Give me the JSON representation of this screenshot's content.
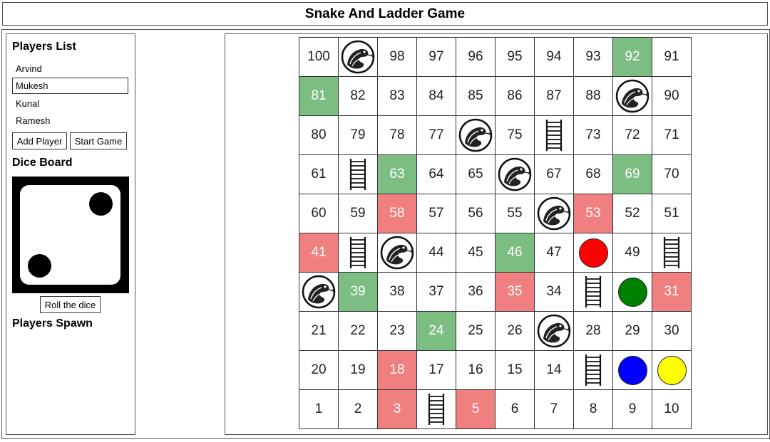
{
  "app": {
    "title": "Snake And Ladder Game"
  },
  "sidebar": {
    "players_title": "Players List",
    "players": [
      "Arvind",
      "Mukesh",
      "Kunal",
      "Ramesh"
    ],
    "selected_player": "Mukesh",
    "add_player_label": "Add Player",
    "start_game_label": "Start Game",
    "dice_title": "Dice Board",
    "dice_value": 2,
    "roll_label": "Roll the dice",
    "spawn_title": "Players Spawn"
  },
  "colors": {
    "ladder_base": "#7cbd82",
    "snake_tail": "#f08080",
    "tokens": [
      "#ff0000",
      "#008000",
      "#0000ff",
      "#ffff00"
    ]
  },
  "board": {
    "rows": [
      [
        "100",
        "snake-icon",
        "98",
        "97",
        "96",
        "95",
        "94",
        "93",
        "92",
        "91"
      ],
      [
        "81",
        "82",
        "83",
        "84",
        "85",
        "86",
        "87",
        "88",
        "snake-icon",
        "90"
      ],
      [
        "80",
        "79",
        "78",
        "77",
        "snake-icon",
        "75",
        "ladder-icon",
        "73",
        "72",
        "71"
      ],
      [
        "61",
        "ladder-icon",
        "63",
        "64",
        "65",
        "snake-icon",
        "67",
        "68",
        "69",
        "70"
      ],
      [
        "60",
        "59",
        "58",
        "57",
        "56",
        "55",
        "snake-icon",
        "53",
        "52",
        "51"
      ],
      [
        "41",
        "ladder-icon",
        "snake-icon",
        "44",
        "45",
        "46",
        "47",
        "token:#ff0000",
        "49",
        "ladder-icon"
      ],
      [
        "snake-icon",
        "39",
        "38",
        "37",
        "36",
        "35",
        "34",
        "ladder-icon",
        "token:#008000",
        "31"
      ],
      [
        "21",
        "22",
        "23",
        "24",
        "25",
        "26",
        "snake-icon",
        "28",
        "29",
        "30"
      ],
      [
        "20",
        "19",
        "18",
        "17",
        "16",
        "15",
        "14",
        "ladder-icon",
        "token:#0000ff",
        "token:#ffff00"
      ],
      [
        "1",
        "2",
        "3",
        "ladder-icon",
        "5",
        "6",
        "7",
        "8",
        "9",
        "10"
      ]
    ],
    "green_cells": [
      "92",
      "81",
      "63",
      "69",
      "46",
      "39",
      "24"
    ],
    "red_cells": [
      "58",
      "53",
      "41",
      "35",
      "31",
      "18",
      "3",
      "5"
    ]
  }
}
